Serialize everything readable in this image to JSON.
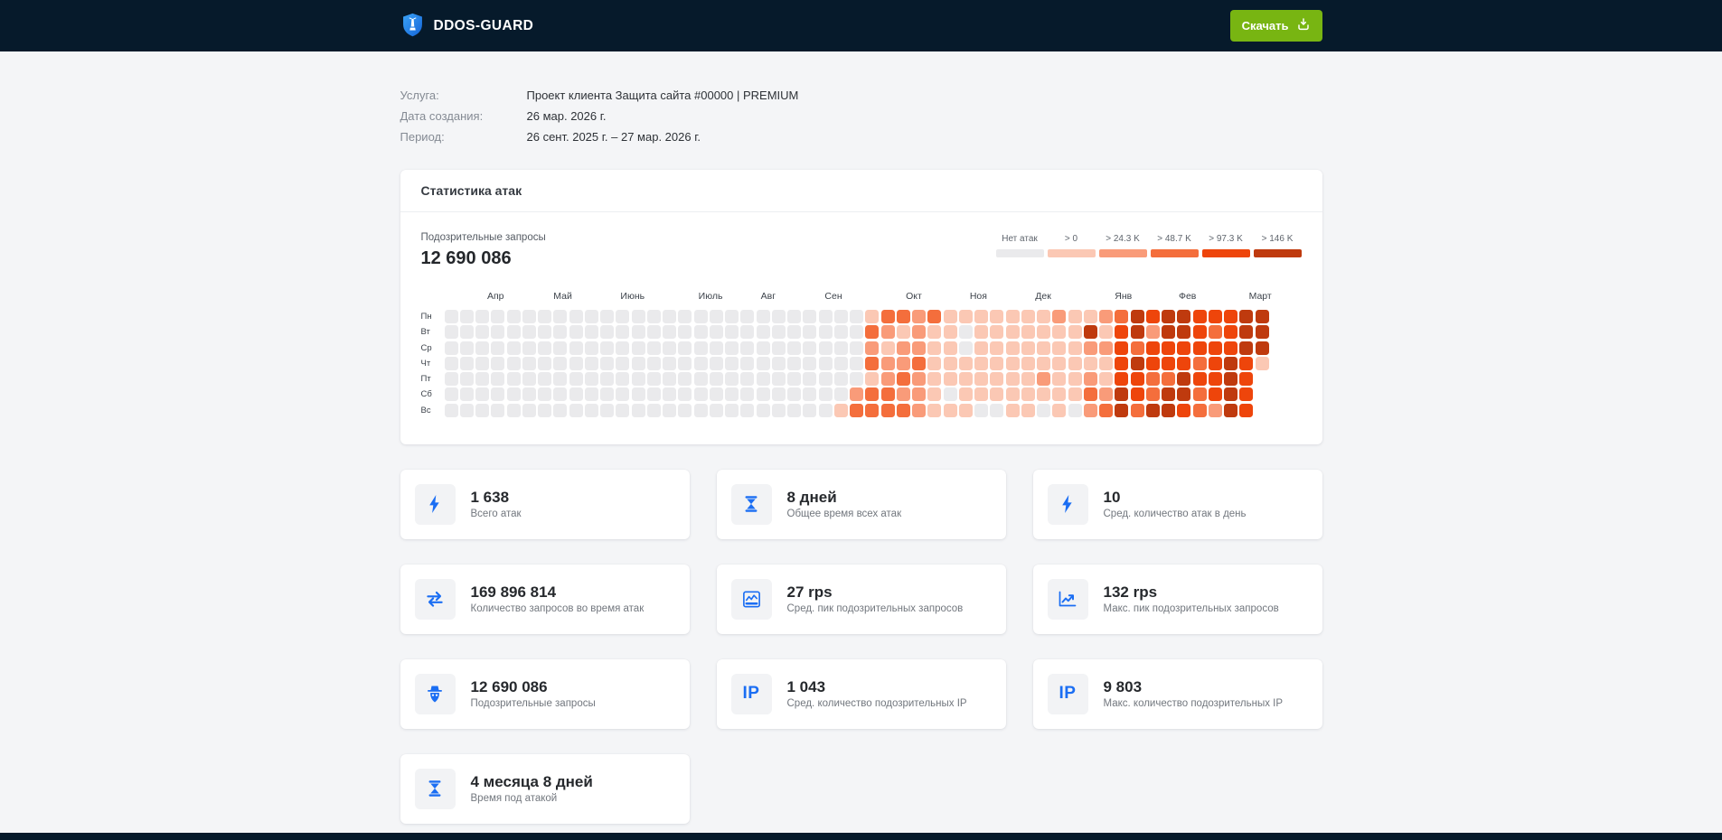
{
  "header": {
    "brand": "DDOS-GUARD",
    "download_label": "Скачать"
  },
  "meta": {
    "rows": [
      {
        "label": "Услуга:",
        "value": "Проект клиента Защита сайта #00000 | PREMIUM"
      },
      {
        "label": "Дата создания:",
        "value": "26 мар. 2026 г."
      },
      {
        "label": "Период:",
        "value": "26 сент. 2025 г. – 27 мар. 2026 г."
      }
    ]
  },
  "colors": {
    "header_bg": "#061a2b",
    "accent_green": "#78b512",
    "icon_blue": "#1b6ef3",
    "heatmap_palette": [
      "#eaeaec",
      "#fbc8b4",
      "#f99b79",
      "#f46e3c",
      "#ee450b",
      "#bf3a0e"
    ]
  },
  "stats_card": {
    "title": "Статистика атак",
    "metric_label": "Подозрительные запросы",
    "metric_value": "12 690 086",
    "legend": [
      {
        "label": "Нет атак"
      },
      {
        "label": "> 0"
      },
      {
        "label": "> 24.3 K"
      },
      {
        "label": "> 48.7 K"
      },
      {
        "label": "> 97.3 K"
      },
      {
        "label": "> 146 K"
      }
    ],
    "heatmap": {
      "type": "heatmap",
      "dow": [
        "Пн",
        "Вт",
        "Ср",
        "Чт",
        "Пт",
        "Сб",
        "Вс"
      ],
      "months": [
        {
          "label": "Апр",
          "col": 2.75
        },
        {
          "label": "Май",
          "col": 7
        },
        {
          "label": "Июнь",
          "col": 11.3
        },
        {
          "label": "Июль",
          "col": 16.3
        },
        {
          "label": "Авг",
          "col": 20.3
        },
        {
          "label": "Сен",
          "col": 24.4
        },
        {
          "label": "Окт",
          "col": 29.6
        },
        {
          "label": "Ноя",
          "col": 33.7
        },
        {
          "label": "Дек",
          "col": 37.9
        },
        {
          "label": "Янв",
          "col": 43
        },
        {
          "label": "Фев",
          "col": 47.1
        },
        {
          "label": "Март",
          "col": 51.6
        }
      ],
      "columns": [
        "0000000",
        "0000000",
        "0000000",
        "0000000",
        "0000000",
        "0000000",
        "0000000",
        "0000000",
        "0000000",
        "0000000",
        "0000000",
        "0000000",
        "0000000",
        "0000000",
        "0000000",
        "0000000",
        "0000000",
        "0000000",
        "0000000",
        "0000000",
        "0000000",
        "0000000",
        "0000000",
        "0000000",
        "0000000",
        "0000001",
        "0000023",
        "1323133",
        "3212233",
        "3122323",
        "2223222",
        "3111111",
        "1111101",
        "1001111",
        "1111110",
        "1111110",
        "1111111",
        "1111111",
        "1111210",
        "2111111",
        "1111110",
        "1521232",
        "2121123",
        "3444455",
        "5535443",
        "4244335",
        "5544355",
        "5544554",
        "4443433",
        "4344442",
        "4445555",
        "5554444",
        "5551..."
      ]
    }
  },
  "cards": [
    {
      "icon": "bolt",
      "value": "1 638",
      "label": "Всего атак"
    },
    {
      "icon": "hourglass",
      "value": "8 дней",
      "label": "Общее время всех атак"
    },
    {
      "icon": "bolt",
      "value": "10",
      "label": "Сред. количество атак в день"
    },
    {
      "icon": "arrows",
      "value": "169 896 814",
      "label": "Количество запросов во время атак"
    },
    {
      "icon": "chart-avg",
      "value": "27 rps",
      "label": "Сред. пик подозрительных запросов"
    },
    {
      "icon": "chart-max",
      "value": "132 rps",
      "label": "Макс. пик подозрительных запросов"
    },
    {
      "icon": "spy",
      "value": "12 690 086",
      "label": "Подозрительные запросы"
    },
    {
      "icon": "ip",
      "value": "1 043",
      "label": "Сред. количество подозрительных IP"
    },
    {
      "icon": "ip",
      "value": "9 803",
      "label": "Макс. количество подозрительных IP"
    },
    {
      "icon": "hourglass",
      "value": "4 месяца 8 дней",
      "label": "Время под атакой"
    }
  ]
}
